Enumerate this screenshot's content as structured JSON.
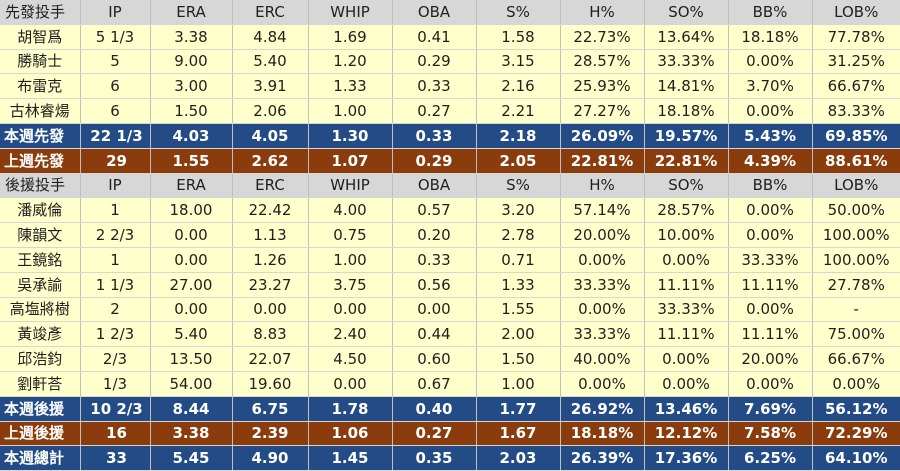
{
  "columns": [
    "IP",
    "ERA",
    "ERC",
    "WHIP",
    "OBA",
    "S%",
    "H%",
    "SO%",
    "BB%",
    "LOB%"
  ],
  "starters": {
    "header": "先發投手",
    "rows": [
      {
        "name": "胡智爲",
        "vals": [
          "5 1/3",
          "3.38",
          "4.84",
          "1.69",
          "0.41",
          "1.58",
          "22.73%",
          "13.64%",
          "18.18%",
          "77.78%"
        ]
      },
      {
        "name": "勝騎士",
        "vals": [
          "5",
          "9.00",
          "5.40",
          "1.20",
          "0.29",
          "3.15",
          "28.57%",
          "33.33%",
          "0.00%",
          "31.25%"
        ]
      },
      {
        "name": "布雷克",
        "vals": [
          "6",
          "3.00",
          "3.91",
          "1.33",
          "0.33",
          "2.16",
          "25.93%",
          "14.81%",
          "3.70%",
          "66.67%"
        ]
      },
      {
        "name": "古林睿煬",
        "vals": [
          "6",
          "1.50",
          "2.06",
          "1.00",
          "0.27",
          "2.21",
          "27.27%",
          "18.18%",
          "0.00%",
          "83.33%"
        ]
      }
    ],
    "this_week": {
      "name": "本週先發",
      "vals": [
        "22 1/3",
        "4.03",
        "4.05",
        "1.30",
        "0.33",
        "2.18",
        "26.09%",
        "19.57%",
        "5.43%",
        "69.85%"
      ]
    },
    "last_week": {
      "name": "上週先發",
      "vals": [
        "29",
        "1.55",
        "2.62",
        "1.07",
        "0.29",
        "2.05",
        "22.81%",
        "22.81%",
        "4.39%",
        "88.61%"
      ]
    }
  },
  "relievers": {
    "header": "後援投手",
    "rows": [
      {
        "name": "潘威倫",
        "vals": [
          "1",
          "18.00",
          "22.42",
          "4.00",
          "0.57",
          "3.20",
          "57.14%",
          "28.57%",
          "0.00%",
          "50.00%"
        ]
      },
      {
        "name": "陳韻文",
        "vals": [
          "2 2/3",
          "0.00",
          "1.13",
          "0.75",
          "0.20",
          "2.78",
          "20.00%",
          "10.00%",
          "0.00%",
          "100.00%"
        ]
      },
      {
        "name": "王鏡銘",
        "vals": [
          "1",
          "0.00",
          "1.26",
          "1.00",
          "0.33",
          "0.71",
          "0.00%",
          "0.00%",
          "33.33%",
          "100.00%"
        ]
      },
      {
        "name": "吳承諭",
        "vals": [
          "1 1/3",
          "27.00",
          "23.27",
          "3.75",
          "0.56",
          "1.33",
          "33.33%",
          "11.11%",
          "11.11%",
          "27.78%"
        ]
      },
      {
        "name": "高塩將樹",
        "vals": [
          "2",
          "0.00",
          "0.00",
          "0.00",
          "0.00",
          "1.55",
          "0.00%",
          "33.33%",
          "0.00%",
          "-"
        ]
      },
      {
        "name": "黃竣彥",
        "vals": [
          "1 2/3",
          "5.40",
          "8.83",
          "2.40",
          "0.44",
          "2.00",
          "33.33%",
          "11.11%",
          "11.11%",
          "75.00%"
        ]
      },
      {
        "name": "邱浩鈞",
        "vals": [
          "2/3",
          "13.50",
          "22.07",
          "4.50",
          "0.60",
          "1.50",
          "40.00%",
          "0.00%",
          "20.00%",
          "66.67%"
        ]
      },
      {
        "name": "劉軒荅",
        "vals": [
          "1/3",
          "54.00",
          "19.60",
          "0.00",
          "0.67",
          "1.00",
          "0.00%",
          "0.00%",
          "0.00%",
          "0.00%"
        ]
      }
    ],
    "this_week": {
      "name": "本週後援",
      "vals": [
        "10 2/3",
        "8.44",
        "6.75",
        "1.78",
        "0.40",
        "1.77",
        "26.92%",
        "13.46%",
        "7.69%",
        "56.12%"
      ]
    },
    "last_week": {
      "name": "上週後援",
      "vals": [
        "16",
        "3.38",
        "2.39",
        "1.06",
        "0.27",
        "1.67",
        "18.18%",
        "12.12%",
        "7.58%",
        "72.29%"
      ]
    }
  },
  "total": {
    "name": "本週總計",
    "vals": [
      "33",
      "5.45",
      "4.90",
      "1.45",
      "0.35",
      "2.03",
      "26.39%",
      "17.36%",
      "6.25%",
      "64.10%"
    ]
  },
  "colors": {
    "header_bg": "#d7d7d7",
    "row_bg": "#ffffcc",
    "blue_summary": "#234c86",
    "brown_summary": "#8a3c0c"
  }
}
